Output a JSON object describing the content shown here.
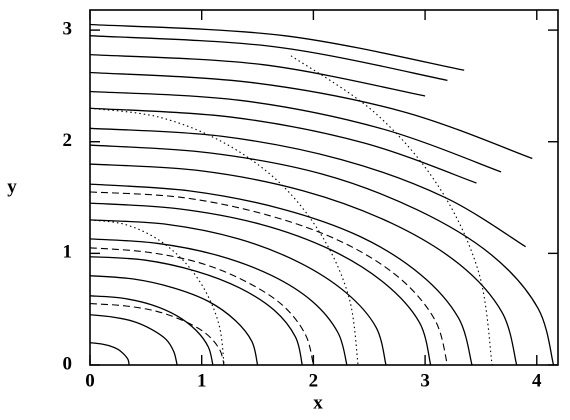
{
  "chart_data": {
    "type": "contour",
    "x_label": "x",
    "y_label": "y",
    "xlim": [
      0,
      4.19
    ],
    "ylim": [
      0,
      3.18
    ],
    "xticks": [
      0,
      1,
      2,
      3,
      4
    ],
    "yticks": [
      0,
      1,
      2,
      3
    ],
    "series": [
      {
        "style": "solid",
        "color": "#000000",
        "x": [
          0,
          0.09,
          0.18,
          0.25,
          0.3,
          0.34,
          0.35
        ],
        "values": [
          0.2,
          0.19,
          0.17,
          0.14,
          0.1,
          0.05,
          0
        ]
      },
      {
        "style": "solid",
        "color": "#000000",
        "x": [
          0,
          0.2,
          0.39,
          0.55,
          0.68,
          0.75,
          0.78
        ],
        "values": [
          0.45,
          0.43,
          0.39,
          0.32,
          0.23,
          0.12,
          0
        ]
      },
      {
        "style": "solid",
        "color": "#000000",
        "x": [
          0,
          0.28,
          0.55,
          0.78,
          0.95,
          1.06,
          1.1
        ],
        "values": [
          0.62,
          0.6,
          0.54,
          0.44,
          0.31,
          0.16,
          0
        ]
      },
      {
        "style": "solid",
        "color": "#000000",
        "x": [
          0,
          0.39,
          0.75,
          1.06,
          1.3,
          1.45,
          1.5
        ],
        "values": [
          0.8,
          0.77,
          0.69,
          0.57,
          0.4,
          0.21,
          0
        ]
      },
      {
        "style": "solid",
        "color": "#000000",
        "x": [
          0,
          0.49,
          0.95,
          1.34,
          1.65,
          1.84,
          1.9
        ],
        "values": [
          0.97,
          0.94,
          0.84,
          0.69,
          0.49,
          0.25,
          0
        ]
      },
      {
        "style": "solid",
        "color": "#000000",
        "x": [
          0,
          0.6,
          1.15,
          1.63,
          1.99,
          2.22,
          2.3
        ],
        "values": [
          1.13,
          1.09,
          0.98,
          0.8,
          0.57,
          0.29,
          0
        ]
      },
      {
        "style": "solid",
        "color": "#000000",
        "x": [
          0,
          0.69,
          1.33,
          1.87,
          2.29,
          2.56,
          2.65
        ],
        "values": [
          1.3,
          1.26,
          1.13,
          0.92,
          0.65,
          0.34,
          0
        ]
      },
      {
        "style": "solid",
        "color": "#000000",
        "x": [
          0,
          0.79,
          1.53,
          2.16,
          2.64,
          2.95,
          3.05
        ],
        "values": [
          1.45,
          1.4,
          1.26,
          1.03,
          0.73,
          0.38,
          0
        ]
      },
      {
        "style": "solid",
        "color": "#000000",
        "x": [
          0,
          0.89,
          1.71,
          2.42,
          2.96,
          3.3,
          3.42
        ],
        "values": [
          1.62,
          1.56,
          1.4,
          1.15,
          0.81,
          0.42,
          0
        ]
      },
      {
        "style": "solid",
        "color": "#000000",
        "x": [
          0,
          0.99,
          1.91,
          2.7,
          3.31,
          3.69,
          3.82
        ],
        "values": [
          1.8,
          1.74,
          1.56,
          1.27,
          0.9,
          0.47,
          0
        ]
      },
      {
        "style": "solid",
        "color": "#000000",
        "x": [
          0,
          1.07,
          2.08,
          2.93,
          3.59,
          4.01,
          4.15
        ],
        "values": [
          1.97,
          1.9,
          1.71,
          1.39,
          0.99,
          0.51,
          0
        ]
      },
      {
        "style": "solid",
        "color": "#000000",
        "x": [
          0,
          1.17,
          2.25,
          3.18,
          3.9
        ],
        "values": [
          2.12,
          2.05,
          1.84,
          1.5,
          1.06
        ]
      },
      {
        "style": "solid",
        "color": "#000000",
        "x": [
          0,
          1.27,
          2.45,
          3.46
        ],
        "values": [
          2.3,
          2.22,
          1.99,
          1.63
        ]
      },
      {
        "style": "solid",
        "color": "#000000",
        "x": [
          0,
          1.35,
          2.6,
          3.68
        ],
        "values": [
          2.45,
          2.37,
          2.12,
          1.73
        ]
      },
      {
        "style": "solid",
        "color": "#000000",
        "x": [
          0,
          1.45,
          2.8,
          3.96
        ],
        "values": [
          2.62,
          2.53,
          2.27,
          1.85
        ]
      },
      {
        "style": "solid",
        "color": "#000000",
        "x": [
          0,
          1.55,
          3.0
        ],
        "values": [
          2.78,
          2.69,
          2.41
        ]
      },
      {
        "style": "solid",
        "color": "#000000",
        "x": [
          0,
          1.66,
          3.2
        ],
        "values": [
          2.95,
          2.85,
          2.55
        ]
      },
      {
        "style": "solid",
        "color": "#000000",
        "x": [
          0,
          1.74,
          3.35
        ],
        "values": [
          3.05,
          2.95,
          2.64
        ]
      },
      {
        "style": "dashed",
        "color": "#000000",
        "x": [
          0,
          0.31,
          0.6,
          0.85,
          1.04,
          1.16,
          1.2
        ],
        "values": [
          0.55,
          0.53,
          0.48,
          0.39,
          0.28,
          0.14,
          0
        ]
      },
      {
        "style": "dashed",
        "color": "#000000",
        "x": [
          0,
          0.52,
          1.0,
          1.41,
          1.73,
          1.93,
          2.0
        ],
        "values": [
          1.05,
          1.01,
          0.91,
          0.74,
          0.53,
          0.27,
          0
        ]
      },
      {
        "style": "dashed",
        "color": "#000000",
        "x": [
          0,
          0.83,
          1.6,
          2.26,
          2.77,
          3.09,
          3.2
        ],
        "values": [
          1.55,
          1.5,
          1.34,
          1.1,
          0.78,
          0.4,
          0
        ]
      },
      {
        "style": "dotted",
        "color": "#000000",
        "x": [
          0,
          0.31,
          0.6,
          0.85,
          1.04,
          1.16,
          1.2
        ],
        "values": [
          1.3,
          1.26,
          1.13,
          0.92,
          0.65,
          0.34,
          0
        ]
      },
      {
        "style": "dotted",
        "color": "#000000",
        "x": [
          0,
          0.62,
          1.2,
          1.7,
          2.08,
          2.32,
          2.4
        ],
        "values": [
          2.3,
          2.22,
          1.99,
          1.63,
          1.15,
          0.6,
          0
        ]
      },
      {
        "style": "dotted",
        "color": "#000000",
        "x": [
          1.8,
          2.55,
          3.12,
          3.48,
          3.6
        ],
        "values": [
          2.77,
          2.26,
          1.6,
          0.83,
          0
        ]
      }
    ]
  }
}
